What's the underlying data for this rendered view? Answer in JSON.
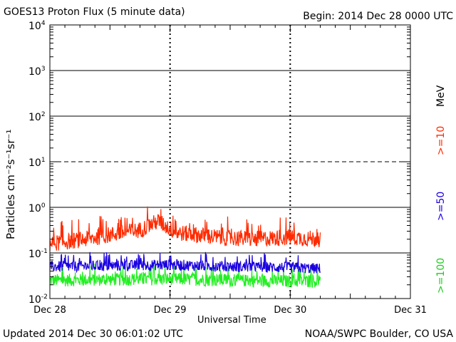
{
  "header": {
    "title": "GOES13 Proton Flux (5 minute data)",
    "begin": "Begin: 2014 Dec 28 0000 UTC"
  },
  "footer": {
    "updated": "Updated 2014 Dec 30 06:01:02 UTC",
    "credit": "NOAA/SWPC Boulder, CO USA"
  },
  "chart_data": {
    "type": "line",
    "title": "GOES13 Proton Flux (5 minute data)",
    "xlabel": "Universal Time",
    "ylabel": "Particles cm⁻²s⁻¹sr⁻¹",
    "yscale": "log",
    "ylim": [
      0.01,
      10000
    ],
    "y_ticks": [
      {
        "value": 10000,
        "base": "10",
        "exp": "4"
      },
      {
        "value": 1000,
        "base": "10",
        "exp": "3"
      },
      {
        "value": 100,
        "base": "10",
        "exp": "2"
      },
      {
        "value": 10,
        "base": "10",
        "exp": "1"
      },
      {
        "value": 1,
        "base": "10",
        "exp": "0"
      },
      {
        "value": 0.1,
        "base": "10",
        "exp": "-1"
      },
      {
        "value": 0.01,
        "base": "10",
        "exp": "-2"
      }
    ],
    "x_range_days": [
      0,
      3
    ],
    "x_ticks": [
      {
        "day": 0,
        "label": "Dec 28"
      },
      {
        "day": 1,
        "label": "Dec 29"
      },
      {
        "day": 2,
        "label": "Dec 30"
      },
      {
        "day": 3,
        "label": "Dec 31"
      }
    ],
    "data_end_day": 2.25,
    "grid": {
      "solid_lines": [
        1000,
        100,
        1,
        0.1
      ],
      "dashed_lines": [
        10
      ]
    },
    "unit_label": "MeV",
    "series": [
      {
        "name": ">=10",
        "color": "#ff2a00",
        "baseline": [
          [
            0,
            0.16
          ],
          [
            0.3,
            0.2
          ],
          [
            0.5,
            0.25
          ],
          [
            0.75,
            0.32
          ],
          [
            0.9,
            0.5
          ],
          [
            1.05,
            0.28
          ],
          [
            1.4,
            0.22
          ],
          [
            1.7,
            0.2
          ],
          [
            2.0,
            0.22
          ],
          [
            2.25,
            0.2
          ]
        ],
        "spread": 0.18
      },
      {
        "name": ">=50",
        "color": "#1a00e0",
        "baseline": [
          [
            0,
            0.05
          ],
          [
            0.5,
            0.052
          ],
          [
            1.0,
            0.055
          ],
          [
            1.5,
            0.05
          ],
          [
            2.0,
            0.048
          ],
          [
            2.25,
            0.045
          ]
        ],
        "spread": 0.12
      },
      {
        "name": ">=100",
        "color": "#22ee22",
        "baseline": [
          [
            0,
            0.025
          ],
          [
            0.5,
            0.026
          ],
          [
            1.0,
            0.027
          ],
          [
            1.5,
            0.025
          ],
          [
            2.0,
            0.024
          ],
          [
            2.25,
            0.024
          ]
        ],
        "spread": 0.14
      }
    ]
  }
}
